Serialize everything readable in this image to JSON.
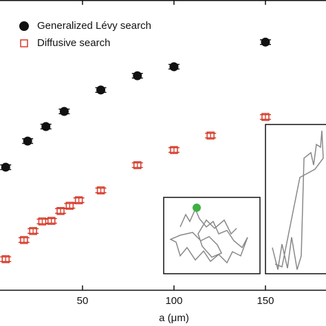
{
  "chart_data": {
    "type": "scatter",
    "x_label": "a (μm)",
    "xlim": [
      4.9,
      183.1
    ],
    "ylim": [
      0,
      100
    ],
    "xticks": [
      50,
      100,
      150
    ],
    "series": [
      {
        "name": "Generalized Lévy search",
        "color": "#111111",
        "marker": "circle",
        "x": [
          8,
          20,
          30,
          40,
          60,
          80,
          100,
          150
        ],
        "values": [
          42.4,
          51.4,
          56.4,
          61.6,
          69.0,
          73.9,
          77.0,
          85.5
        ],
        "errors": [
          0.8,
          0.8,
          0.8,
          0.8,
          0.8,
          0.8,
          0.8,
          0.8
        ]
      },
      {
        "name": "Diffusive search",
        "color": "#d63b2a",
        "marker": "square",
        "x": [
          8,
          18,
          23,
          28,
          33,
          38,
          43,
          48,
          60,
          80,
          100,
          120,
          150
        ],
        "values": [
          10.7,
          17.3,
          20.4,
          23.7,
          23.9,
          27.3,
          29.1,
          31.0,
          34.4,
          43.1,
          48.3,
          53.3,
          59.7
        ],
        "errors": [
          0.8,
          0.8,
          0.8,
          0.8,
          0.8,
          0.8,
          0.8,
          0.8,
          0.8,
          0.8,
          0.8,
          0.8,
          0.8
        ]
      }
    ]
  }
}
